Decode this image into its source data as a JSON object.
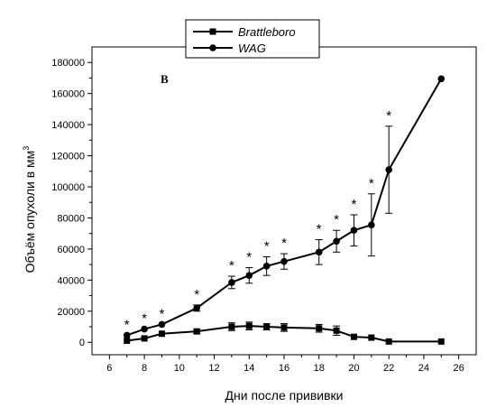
{
  "chart_data": {
    "type": "line",
    "panel_label": "B",
    "xlabel": "Дни после прививки",
    "ylabel": "Объём опухоли в мм",
    "ylabel_superscript": "3",
    "xlim": [
      5,
      27
    ],
    "ylim": [
      -8000,
      190000
    ],
    "x_ticks": [
      6,
      8,
      10,
      12,
      14,
      16,
      18,
      20,
      22,
      24,
      26
    ],
    "y_ticks": [
      0,
      20000,
      40000,
      60000,
      80000,
      100000,
      120000,
      140000,
      160000,
      180000
    ],
    "legend": {
      "position": "top-center"
    },
    "series": [
      {
        "name": "Brattleboro",
        "marker": "square",
        "color": "#000000",
        "x": [
          7,
          8,
          9,
          11,
          13,
          14,
          15,
          16,
          18,
          19,
          20,
          21,
          22,
          25
        ],
        "y": [
          1000,
          2500,
          5500,
          7000,
          10000,
          10500,
          10000,
          9500,
          9000,
          7500,
          3500,
          3000,
          500,
          500
        ],
        "error": [
          0,
          0,
          0,
          1500,
          2500,
          2500,
          2000,
          2500,
          2500,
          3000,
          0,
          0,
          0,
          0
        ]
      },
      {
        "name": "WAG",
        "marker": "circle",
        "color": "#000000",
        "x": [
          7,
          8,
          9,
          11,
          13,
          14,
          15,
          16,
          18,
          19,
          20,
          21,
          22,
          25
        ],
        "y": [
          4500,
          8500,
          11500,
          22000,
          38500,
          43000,
          49000,
          52000,
          58000,
          65000,
          72000,
          75500,
          111000,
          169500
        ],
        "error": [
          0,
          0,
          0,
          2000,
          4000,
          5000,
          6000,
          5000,
          8000,
          7000,
          10000,
          20000,
          28000,
          0
        ]
      }
    ],
    "significance_marker": "*",
    "significance_x": [
      7,
      8,
      9,
      11,
      13,
      14,
      15,
      16,
      18,
      19,
      20,
      21,
      22
    ]
  }
}
